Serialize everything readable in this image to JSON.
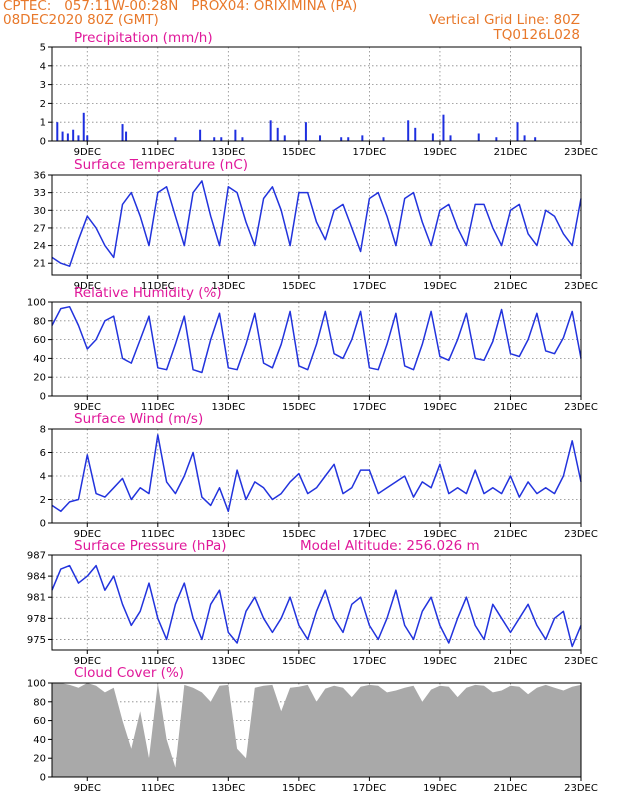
{
  "header": {
    "line1_left": "CPTEC:   057:11W-00:28N   PROX04: ORIXIMINA (PA)",
    "line2_left": "08DEC2020 80Z (GMT)",
    "line2_right": "Vertical Grid Line: 80Z",
    "line3_right": "TQ0126L028"
  },
  "x_ticks": [
    "9DEC",
    "11DEC",
    "13DEC",
    "15DEC",
    "17DEC",
    "19DEC",
    "21DEC",
    "23DEC"
  ],
  "colors": {
    "line": "#2233dd",
    "bar": "#1e2fe0",
    "cloud": "#a9a9a9",
    "title": "#e0189a",
    "header": "#e8782a"
  },
  "panels": {
    "precip": {
      "title": "Precipitation (mm/h)",
      "yticks": [
        "0",
        "1",
        "2",
        "3",
        "4",
        "5"
      ]
    },
    "temp": {
      "title": "Surface Temperature (nC)",
      "yticks": [
        "21",
        "24",
        "27",
        "30",
        "33",
        "36"
      ]
    },
    "rh": {
      "title": "Relative Humidity (%)",
      "yticks": [
        "0",
        "20",
        "40",
        "60",
        "80",
        "100"
      ]
    },
    "wind": {
      "title": "Surface Wind (m/s)",
      "yticks": [
        "0",
        "2",
        "4",
        "6",
        "8"
      ]
    },
    "pres": {
      "title": "Surface Pressure (hPa)",
      "subtitle": "Model Altitude: 256.026 m",
      "yticks": [
        "975",
        "978",
        "981",
        "984",
        "987"
      ]
    },
    "cloud": {
      "title": "Cloud Cover (%)",
      "yticks": [
        "0",
        "20",
        "40",
        "60",
        "80",
        "100"
      ]
    }
  },
  "chart_data": [
    {
      "type": "bar",
      "title": "Precipitation (mm/h)",
      "ylim": [
        0,
        5
      ],
      "x_range": [
        "08DEC",
        "23DEC"
      ],
      "x": [
        8.15,
        8.3,
        8.45,
        8.6,
        8.75,
        8.9,
        9.0,
        10.0,
        10.1,
        11.5,
        12.2,
        12.6,
        12.8,
        13.2,
        13.4,
        14.2,
        14.4,
        14.6,
        15.2,
        15.6,
        16.2,
        16.4,
        16.8,
        17.4,
        18.1,
        18.3,
        18.8,
        19.1,
        19.3,
        20.1,
        20.6,
        21.2,
        21.4,
        21.7
      ],
      "values": [
        1.0,
        0.5,
        0.4,
        0.6,
        0.3,
        1.5,
        0.3,
        0.9,
        0.5,
        0.2,
        0.6,
        0.2,
        0.2,
        0.6,
        0.2,
        1.1,
        0.7,
        0.3,
        1.0,
        0.3,
        0.2,
        0.2,
        0.3,
        0.2,
        1.1,
        0.7,
        0.4,
        1.4,
        0.3,
        0.4,
        0.2,
        1.0,
        0.3,
        0.2
      ]
    },
    {
      "type": "line",
      "title": "Surface Temperature (nC)",
      "ylim": [
        19,
        36
      ],
      "x_range": [
        "08DEC",
        "23DEC"
      ],
      "x": [
        8.0,
        8.25,
        8.5,
        8.75,
        9.0,
        9.25,
        9.5,
        9.75,
        10.0,
        10.25,
        10.5,
        10.75,
        11.0,
        11.25,
        11.5,
        11.75,
        12.0,
        12.25,
        12.5,
        12.75,
        13.0,
        13.25,
        13.5,
        13.75,
        14.0,
        14.25,
        14.5,
        14.75,
        15.0,
        15.25,
        15.5,
        15.75,
        16.0,
        16.25,
        16.5,
        16.75,
        17.0,
        17.25,
        17.5,
        17.75,
        18.0,
        18.25,
        18.5,
        18.75,
        19.0,
        19.25,
        19.5,
        19.75,
        20.0,
        20.25,
        20.5,
        20.75,
        21.0,
        21.25,
        21.5,
        21.75,
        22.0,
        22.25,
        22.5,
        22.75,
        23.0
      ],
      "values": [
        22,
        21,
        20.5,
        25,
        29,
        27,
        24,
        22,
        31,
        33,
        29,
        24,
        33,
        34,
        29,
        24,
        33,
        35,
        29,
        24,
        34,
        33,
        28,
        24,
        32,
        34,
        30,
        24,
        33,
        33,
        28,
        25,
        30,
        31,
        27,
        23,
        32,
        33,
        29,
        24,
        32,
        33,
        28,
        24,
        30,
        31,
        27,
        24,
        31,
        31,
        27,
        24,
        30,
        31,
        26,
        24,
        30,
        29,
        26,
        24,
        32
      ]
    },
    {
      "type": "line",
      "title": "Relative Humidity (%)",
      "ylim": [
        0,
        100
      ],
      "x_range": [
        "08DEC",
        "23DEC"
      ],
      "x": [
        8.0,
        8.25,
        8.5,
        8.75,
        9.0,
        9.25,
        9.5,
        9.75,
        10.0,
        10.25,
        10.5,
        10.75,
        11.0,
        11.25,
        11.5,
        11.75,
        12.0,
        12.25,
        12.5,
        12.75,
        13.0,
        13.25,
        13.5,
        13.75,
        14.0,
        14.25,
        14.5,
        14.75,
        15.0,
        15.25,
        15.5,
        15.75,
        16.0,
        16.25,
        16.5,
        16.75,
        17.0,
        17.25,
        17.5,
        17.75,
        18.0,
        18.25,
        18.5,
        18.75,
        19.0,
        19.25,
        19.5,
        19.75,
        20.0,
        20.25,
        20.5,
        20.75,
        21.0,
        21.25,
        21.5,
        21.75,
        22.0,
        22.25,
        22.5,
        22.75,
        23.0
      ],
      "values": [
        75,
        93,
        95,
        75,
        50,
        60,
        80,
        85,
        40,
        35,
        60,
        85,
        30,
        28,
        55,
        85,
        28,
        25,
        60,
        88,
        30,
        28,
        55,
        88,
        35,
        30,
        55,
        90,
        32,
        28,
        55,
        90,
        45,
        40,
        60,
        90,
        30,
        28,
        55,
        88,
        32,
        28,
        55,
        90,
        42,
        38,
        60,
        88,
        40,
        38,
        58,
        92,
        45,
        42,
        60,
        88,
        48,
        45,
        62,
        90,
        40
      ]
    },
    {
      "type": "line",
      "title": "Surface Wind (m/s)",
      "ylim": [
        0,
        8
      ],
      "x_range": [
        "08DEC",
        "23DEC"
      ],
      "x": [
        8.0,
        8.25,
        8.5,
        8.75,
        9.0,
        9.25,
        9.5,
        9.75,
        10.0,
        10.25,
        10.5,
        10.75,
        11.0,
        11.25,
        11.5,
        11.75,
        12.0,
        12.25,
        12.5,
        12.75,
        13.0,
        13.25,
        13.5,
        13.75,
        14.0,
        14.25,
        14.5,
        14.75,
        15.0,
        15.25,
        15.5,
        15.75,
        16.0,
        16.25,
        16.5,
        16.75,
        17.0,
        17.25,
        17.5,
        17.75,
        18.0,
        18.25,
        18.5,
        18.75,
        19.0,
        19.25,
        19.5,
        19.75,
        20.0,
        20.25,
        20.5,
        20.75,
        21.0,
        21.25,
        21.5,
        21.75,
        22.0,
        22.25,
        22.5,
        22.75,
        23.0
      ],
      "values": [
        1.5,
        1.0,
        1.8,
        2.0,
        5.8,
        2.5,
        2.2,
        3.0,
        3.8,
        2.0,
        3.0,
        2.5,
        7.5,
        3.5,
        2.5,
        4.0,
        6.0,
        2.2,
        1.5,
        3.0,
        1.0,
        4.5,
        2.0,
        3.5,
        3.0,
        2.0,
        2.5,
        3.5,
        4.2,
        2.5,
        3.0,
        4.0,
        5.0,
        2.5,
        3.0,
        4.5,
        4.5,
        2.5,
        3.0,
        3.5,
        4.0,
        2.2,
        3.5,
        3.0,
        5.0,
        2.5,
        3.0,
        2.5,
        4.5,
        2.5,
        3.0,
        2.5,
        4.0,
        2.2,
        3.5,
        2.5,
        3.0,
        2.5,
        4.0,
        7.0,
        3.5
      ]
    },
    {
      "type": "line",
      "title": "Surface Pressure (hPa)",
      "ylim": [
        973.5,
        987
      ],
      "x_range": [
        "08DEC",
        "23DEC"
      ],
      "x": [
        8.0,
        8.25,
        8.5,
        8.75,
        9.0,
        9.25,
        9.5,
        9.75,
        10.0,
        10.25,
        10.5,
        10.75,
        11.0,
        11.25,
        11.5,
        11.75,
        12.0,
        12.25,
        12.5,
        12.75,
        13.0,
        13.25,
        13.5,
        13.75,
        14.0,
        14.25,
        14.5,
        14.75,
        15.0,
        15.25,
        15.5,
        15.75,
        16.0,
        16.25,
        16.5,
        16.75,
        17.0,
        17.25,
        17.5,
        17.75,
        18.0,
        18.25,
        18.5,
        18.75,
        19.0,
        19.25,
        19.5,
        19.75,
        20.0,
        20.25,
        20.5,
        20.75,
        21.0,
        21.25,
        21.5,
        21.75,
        22.0,
        22.25,
        22.5,
        22.75,
        23.0
      ],
      "values": [
        982,
        985,
        985.5,
        983,
        984,
        985.5,
        982,
        984,
        980,
        977,
        979,
        983,
        978,
        975,
        980,
        983,
        978,
        975,
        980,
        982,
        976,
        974.5,
        979,
        981,
        978,
        976,
        978,
        981,
        977,
        975,
        979,
        982,
        978,
        976,
        980,
        981,
        977,
        975,
        978,
        982,
        977,
        975,
        979,
        981,
        977,
        974.5,
        978,
        981,
        977,
        975,
        980,
        978,
        976,
        978,
        980,
        977,
        975,
        978,
        979,
        974,
        977
      ]
    },
    {
      "type": "area",
      "title": "Cloud Cover (%)",
      "ylim": [
        0,
        100
      ],
      "x_range": [
        "08DEC",
        "23DEC"
      ],
      "x": [
        8.0,
        8.25,
        8.5,
        8.75,
        9.0,
        9.25,
        9.5,
        9.75,
        10.0,
        10.25,
        10.5,
        10.75,
        11.0,
        11.25,
        11.5,
        11.75,
        12.0,
        12.25,
        12.5,
        12.75,
        13.0,
        13.25,
        13.5,
        13.75,
        14.0,
        14.25,
        14.5,
        14.75,
        15.0,
        15.25,
        15.5,
        15.75,
        16.0,
        16.25,
        16.5,
        16.75,
        17.0,
        17.25,
        17.5,
        17.75,
        18.0,
        18.25,
        18.5,
        18.75,
        19.0,
        19.25,
        19.5,
        19.75,
        20.0,
        20.25,
        20.5,
        20.75,
        21.0,
        21.25,
        21.5,
        21.75,
        22.0,
        22.25,
        22.5,
        22.75,
        23.0
      ],
      "values": [
        100,
        100,
        98,
        95,
        100,
        97,
        90,
        95,
        60,
        30,
        70,
        20,
        100,
        40,
        10,
        98,
        95,
        90,
        80,
        97,
        98,
        30,
        20,
        95,
        97,
        98,
        70,
        95,
        96,
        98,
        80,
        94,
        97,
        95,
        85,
        96,
        98,
        97,
        90,
        92,
        95,
        97,
        80,
        93,
        97,
        96,
        85,
        95,
        98,
        97,
        90,
        92,
        97,
        96,
        88,
        95,
        98,
        95,
        92,
        96,
        98
      ]
    }
  ]
}
